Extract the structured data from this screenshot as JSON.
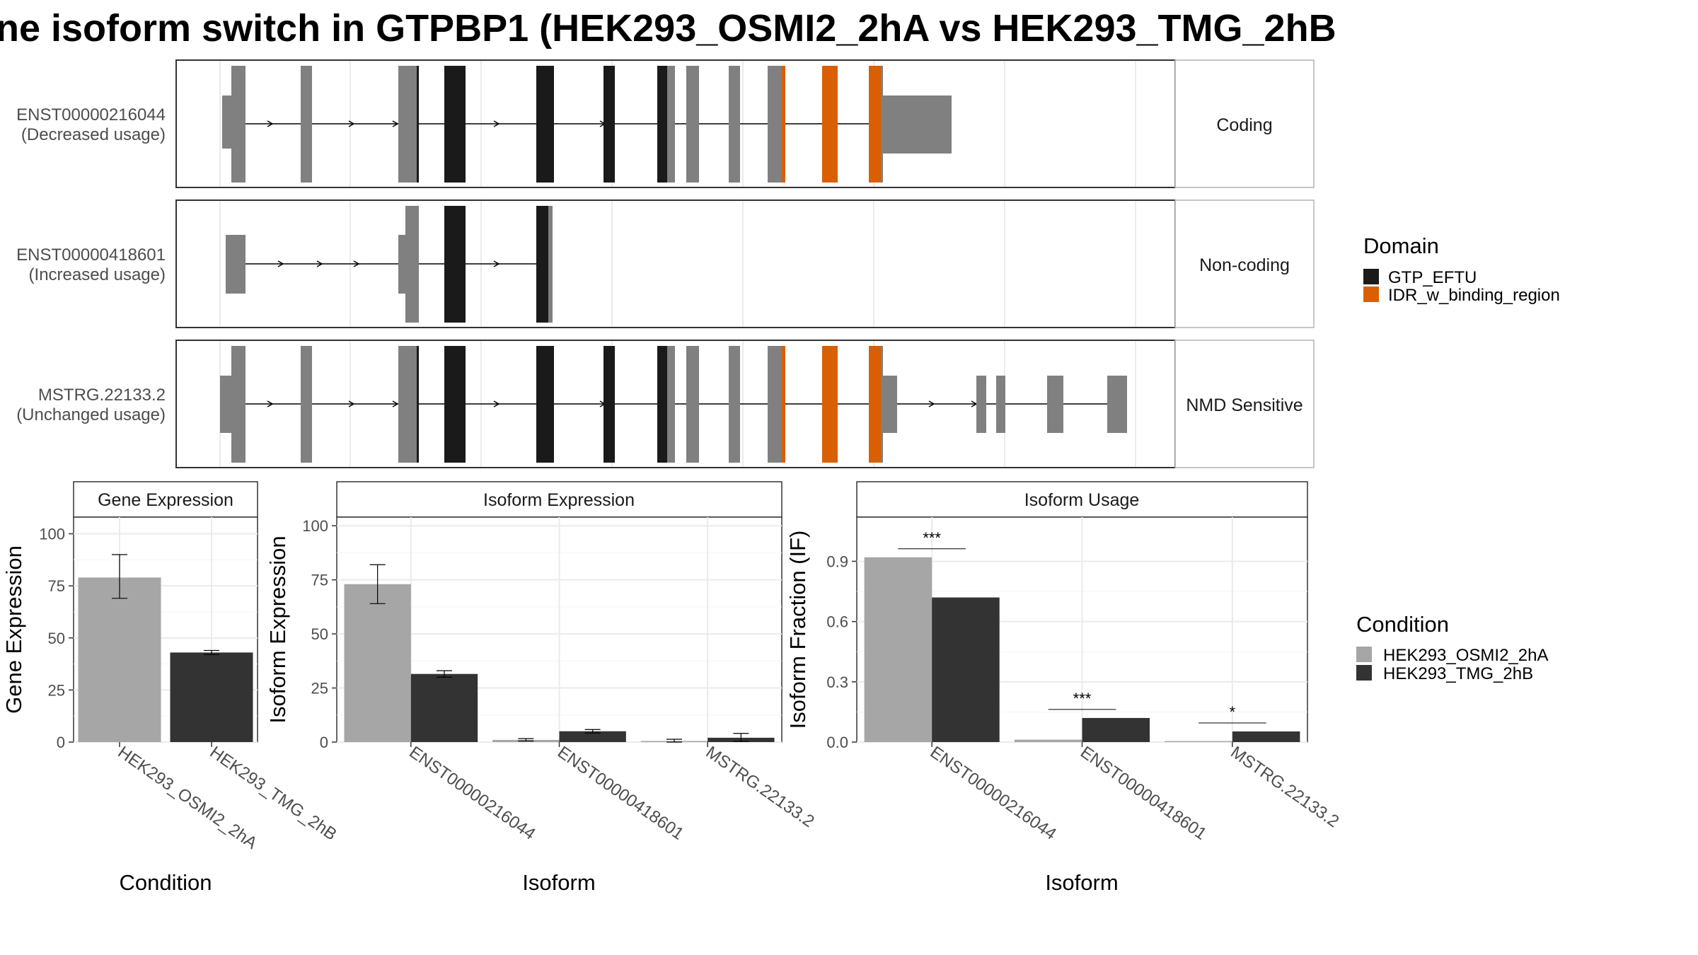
{
  "title": "ne isoform switch in GTPBP1 (HEK293_OSMI2_2hA vs HEK293_TMG_2hB",
  "colors": {
    "gtp_eftu": "#1a1a1a",
    "idr": "#d95f02",
    "utr": "#808080",
    "cond_a": "#a6a6a6",
    "cond_b": "#333333"
  },
  "chart_data": [
    {
      "type": "gene-structure",
      "panels": [
        {
          "id": "ENST00000216044",
          "usage": "(Decreased usage)",
          "category": "Coding"
        },
        {
          "id": "ENST00000418601",
          "usage": "(Increased usage)",
          "category": "Non-coding"
        },
        {
          "id": "MSTRG.22133.2",
          "usage": "(Unchanged usage)",
          "category": "NMD Sensitive"
        }
      ],
      "legend": {
        "title": "Domain",
        "entries": [
          {
            "label": "GTP_EFTU",
            "color": "#1a1a1a"
          },
          {
            "label": "IDR_w_binding_region",
            "color": "#d95f02"
          }
        ]
      }
    },
    {
      "type": "bar",
      "strip": "Gene Expression",
      "xlabel": "Condition",
      "ylabel": "Gene Expression",
      "categories": [
        "HEK293_OSMI2_2hA",
        "HEK293_TMG_2hB"
      ],
      "values": [
        79,
        43
      ],
      "errors": [
        [
          69,
          90
        ],
        [
          42,
          44
        ]
      ],
      "yticks": [
        "0",
        "25",
        "50",
        "75",
        "100"
      ],
      "ylim": [
        0,
        108
      ]
    },
    {
      "type": "bar",
      "strip": "Isoform Expression",
      "xlabel": "Isoform",
      "ylabel": "Isoform Expression",
      "categories": [
        "ENST00000216044",
        "ENST00000418601",
        "MSTRG.22133.2"
      ],
      "series": [
        {
          "name": "HEK293_OSMI2_2hA",
          "values": [
            73,
            1,
            0.5
          ],
          "errors": [
            [
              64,
              82
            ],
            [
              0.5,
              1.6
            ],
            [
              0,
              1.3
            ]
          ]
        },
        {
          "name": "HEK293_TMG_2hB",
          "values": [
            31.5,
            5,
            2
          ],
          "errors": [
            [
              30,
              33
            ],
            [
              4.2,
              5.8
            ],
            [
              0.3,
              4
            ]
          ]
        }
      ],
      "yticks": [
        "0",
        "25",
        "50",
        "75",
        "100"
      ],
      "ylim": [
        0,
        104
      ]
    },
    {
      "type": "bar",
      "strip": "Isoform Usage",
      "xlabel": "Isoform",
      "ylabel": "Isoform Fraction (IF)",
      "categories": [
        "ENST00000216044",
        "ENST00000418601",
        "MSTRG.22133.2"
      ],
      "series": [
        {
          "name": "HEK293_OSMI2_2hA",
          "values": [
            0.92,
            0.012,
            0.005
          ]
        },
        {
          "name": "HEK293_TMG_2hB",
          "values": [
            0.72,
            0.12,
            0.053
          ]
        }
      ],
      "significance": [
        "***",
        "***",
        "*"
      ],
      "yticks": [
        "0.0",
        "0.3",
        "0.6",
        "0.9"
      ],
      "ylim": [
        0,
        1.12
      ]
    }
  ],
  "condition_legend": {
    "title": "Condition",
    "entries": [
      {
        "label": "HEK293_OSMI2_2hA",
        "color": "#a6a6a6"
      },
      {
        "label": "HEK293_TMG_2hB",
        "color": "#333333"
      }
    ]
  }
}
